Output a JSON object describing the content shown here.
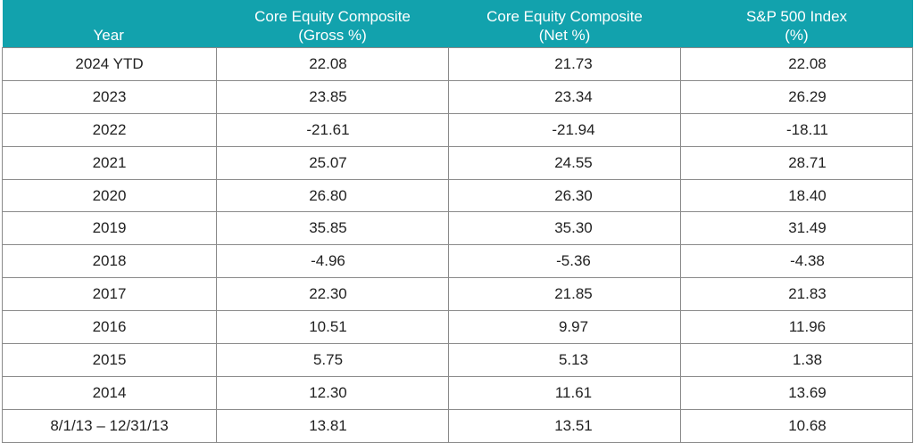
{
  "table": {
    "headers": {
      "year": "Year",
      "gross_line1": "Core Equity Composite",
      "gross_line2": "(Gross %)",
      "net_line1": "Core Equity Composite",
      "net_line2": "(Net %)",
      "sp_line1": "S&P 500 Index",
      "sp_line2": "(%)"
    },
    "rows": [
      {
        "year": "2024 YTD",
        "gross": "22.08",
        "net": "21.73",
        "sp500": "22.08"
      },
      {
        "year": "2023",
        "gross": "23.85",
        "net": "23.34",
        "sp500": "26.29"
      },
      {
        "year": "2022",
        "gross": "-21.61",
        "net": "-21.94",
        "sp500": "-18.11"
      },
      {
        "year": "2021",
        "gross": "25.07",
        "net": "24.55",
        "sp500": "28.71"
      },
      {
        "year": "2020",
        "gross": "26.80",
        "net": "26.30",
        "sp500": "18.40"
      },
      {
        "year": "2019",
        "gross": "35.85",
        "net": "35.30",
        "sp500": "31.49"
      },
      {
        "year": "2018",
        "gross": "-4.96",
        "net": "-5.36",
        "sp500": "-4.38"
      },
      {
        "year": "2017",
        "gross": "22.30",
        "net": "21.85",
        "sp500": "21.83"
      },
      {
        "year": "2016",
        "gross": "10.51",
        "net": "9.97",
        "sp500": "11.96"
      },
      {
        "year": "2015",
        "gross": "5.75",
        "net": "5.13",
        "sp500": "1.38"
      },
      {
        "year": "2014",
        "gross": "12.30",
        "net": "11.61",
        "sp500": "13.69"
      },
      {
        "year": "8/1/13 – 12/31/13",
        "gross": "13.81",
        "net": "13.51",
        "sp500": "10.68"
      }
    ],
    "colors": {
      "header_bg": "#12a2ad",
      "header_text": "#ffffff",
      "border": "#8a8a8a"
    }
  }
}
